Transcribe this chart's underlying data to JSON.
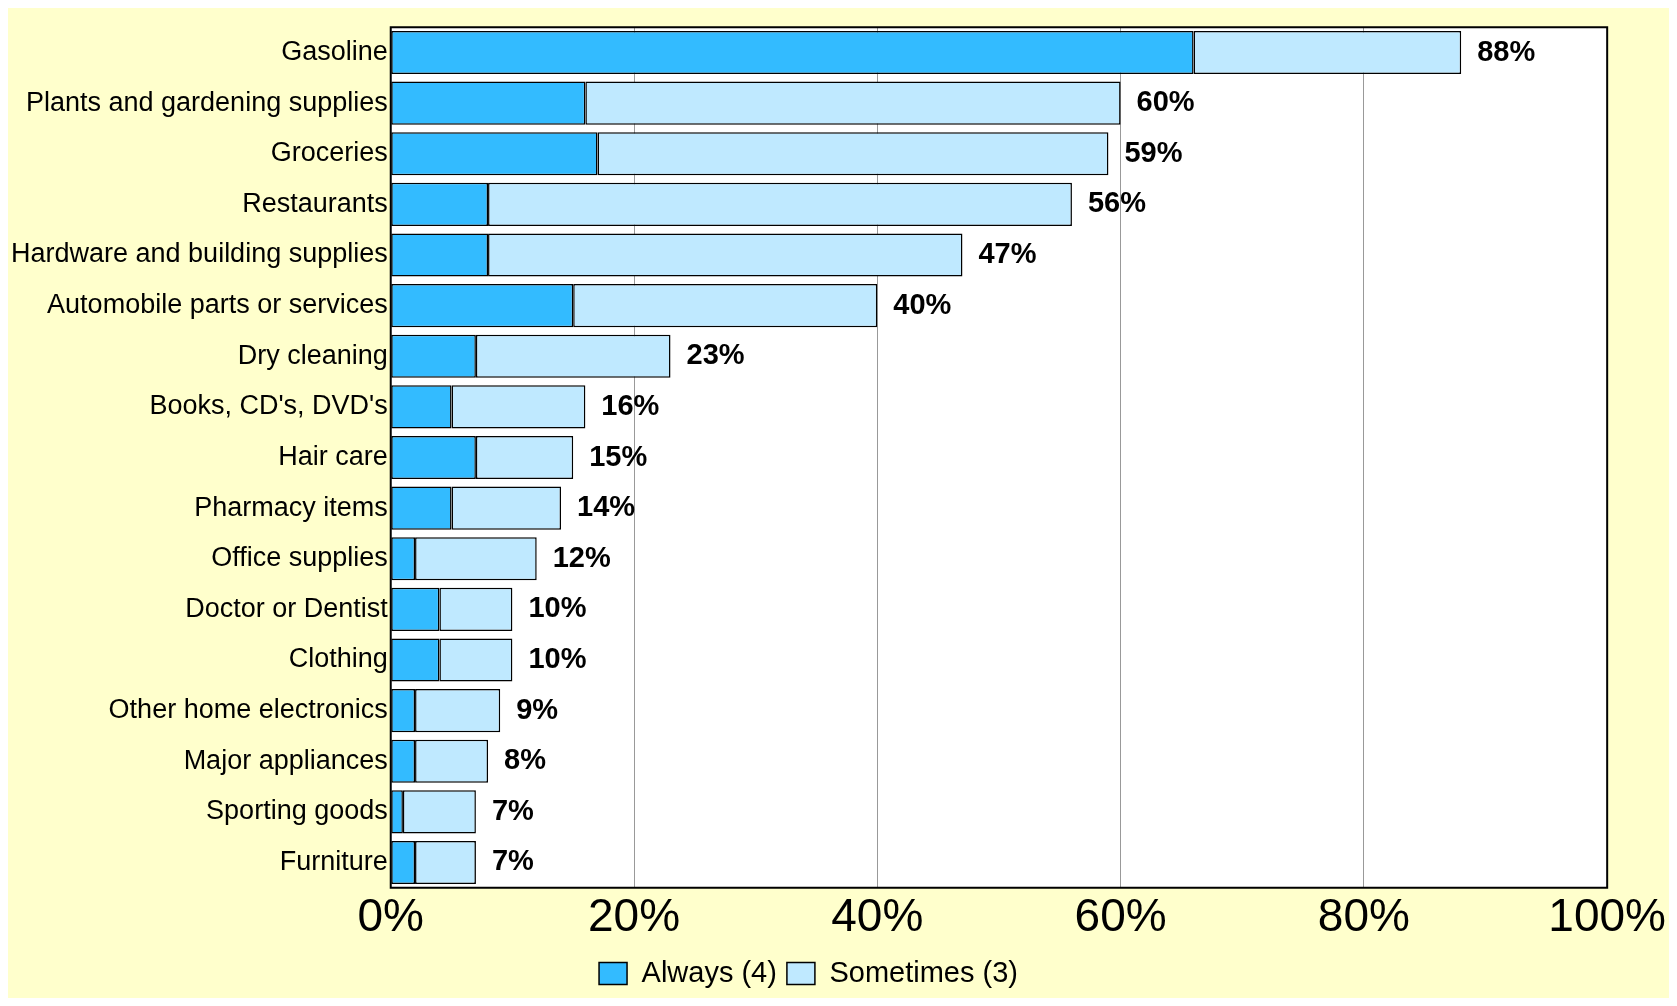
{
  "chart_data": {
    "type": "bar",
    "orientation": "horizontal",
    "stacked": true,
    "categories": [
      "Gasoline",
      "Plants and gardening supplies",
      "Groceries",
      "Restaurants",
      "Hardware and building supplies",
      "Automobile parts or services",
      "Dry cleaning",
      "Books, CD's, DVD's",
      "Hair care",
      "Pharmacy items",
      "Office supplies",
      "Doctor or Dentist",
      "Clothing",
      "Other home electronics",
      "Major appliances",
      "Sporting goods",
      "Furniture"
    ],
    "series": [
      {
        "name": "Always (4)",
        "color": "#33bbff",
        "values": [
          66,
          16,
          17,
          8,
          8,
          15,
          7,
          5,
          7,
          5,
          2,
          4,
          4,
          2,
          2,
          1,
          2
        ]
      },
      {
        "name": "Sometimes (3)",
        "color": "#bfe9ff",
        "values": [
          22,
          44,
          42,
          48,
          39,
          25,
          16,
          11,
          8,
          9,
          10,
          6,
          6,
          7,
          6,
          6,
          5
        ]
      }
    ],
    "totals": [
      "88%",
      "60%",
      "59%",
      "56%",
      "47%",
      "40%",
      "23%",
      "16%",
      "15%",
      "14%",
      "12%",
      "10%",
      "10%",
      "9%",
      "8%",
      "7%",
      "7%"
    ],
    "xlim": [
      0,
      100
    ],
    "xticks": [
      {
        "value": 0,
        "label": "0%"
      },
      {
        "value": 20,
        "label": "20%"
      },
      {
        "value": 40,
        "label": "40%"
      },
      {
        "value": 60,
        "label": "60%"
      },
      {
        "value": 80,
        "label": "80%"
      },
      {
        "value": 100,
        "label": "100%"
      }
    ],
    "grid": "x",
    "legend": "bottom"
  }
}
